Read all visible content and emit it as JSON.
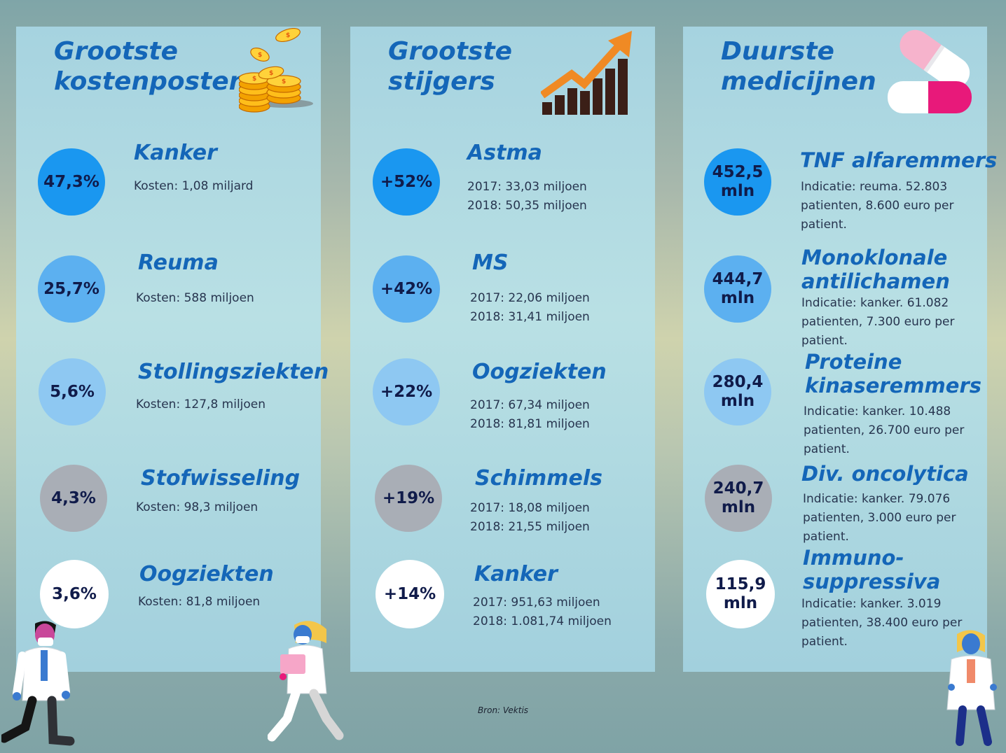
{
  "panels": {
    "costs": {
      "title": "Grootste\nkostenposten",
      "items": [
        {
          "value": "47,3%",
          "title": "Kanker",
          "text": "Kosten: 1,08 miljard"
        },
        {
          "value": "25,7%",
          "title": "Reuma",
          "text": "Kosten: 588 miljoen"
        },
        {
          "value": "5,6%",
          "title": "Stollingsziekten",
          "text": "Kosten: 127,8 miljoen"
        },
        {
          "value": "4,3%",
          "title": "Stofwisseling",
          "text": "Kosten: 98,3 miljoen"
        },
        {
          "value": "3,6%",
          "title": "Oogziekten",
          "text": "Kosten: 81,8 miljoen"
        }
      ]
    },
    "risers": {
      "title": "Grootste\nstijgers",
      "items": [
        {
          "value": "+52%",
          "title": "Astma",
          "line1": "2017: 33,03 miljoen",
          "line2": "2018: 50,35 miljoen"
        },
        {
          "value": "+42%",
          "title": "MS",
          "line1": "2017: 22,06 miljoen",
          "line2": "2018: 31,41 miljoen"
        },
        {
          "value": "+22%",
          "title": "Oogziekten",
          "line1": "2017: 67,34 miljoen",
          "line2": "2018: 81,81 miljoen"
        },
        {
          "value": "+19%",
          "title": "Schimmels",
          "line1": "2017: 18,08 miljoen",
          "line2": "2018: 21,55 miljoen"
        },
        {
          "value": "+14%",
          "title": "Kanker",
          "line1": "2017: 951,63 miljoen",
          "line2": "2018: 1.081,74 miljoen"
        }
      ]
    },
    "meds": {
      "title": "Duurste\nmedicijnen",
      "items": [
        {
          "value": "452,5",
          "unit": "mln",
          "title": "TNF alfaremmers",
          "text": "Indicatie: reuma. 52.803 patienten, 8.600 euro per patient."
        },
        {
          "value": "444,7",
          "unit": "mln",
          "title": "Monoklonale\nantilichamen",
          "text": "Indicatie: kanker. 61.082 patienten, 7.300 euro per patient."
        },
        {
          "value": "280,4",
          "unit": "mln",
          "title": "Proteine\nkinaseremmers",
          "text": "Indicatie: kanker. 10.488 patienten, 26.700 euro per patient."
        },
        {
          "value": "240,7",
          "unit": "mln",
          "title": "Div. oncolytica",
          "text": "Indicatie: kanker. 79.076 patienten, 3.000 euro per patient."
        },
        {
          "value": "115,9",
          "unit": "mln",
          "title": "Immuno-\nsuppressiva",
          "text": "Indicatie: kanker. 3.019 patienten, 38.400 euro per patient."
        }
      ]
    }
  },
  "source": "Bron: Vektis",
  "icons": [
    "coins-icon",
    "growth-chart-icon",
    "pill-capsule-icon",
    "doctor-illustration"
  ],
  "colors": {
    "title_blue": "#1466b8",
    "circle_1": "#1a97f0",
    "circle_2": "#5cb0f0",
    "circle_3": "#8ec8f2",
    "circle_4": "#a9aeb6",
    "circle_5": "#ffffff",
    "growth_arrow": "#f08a24"
  }
}
